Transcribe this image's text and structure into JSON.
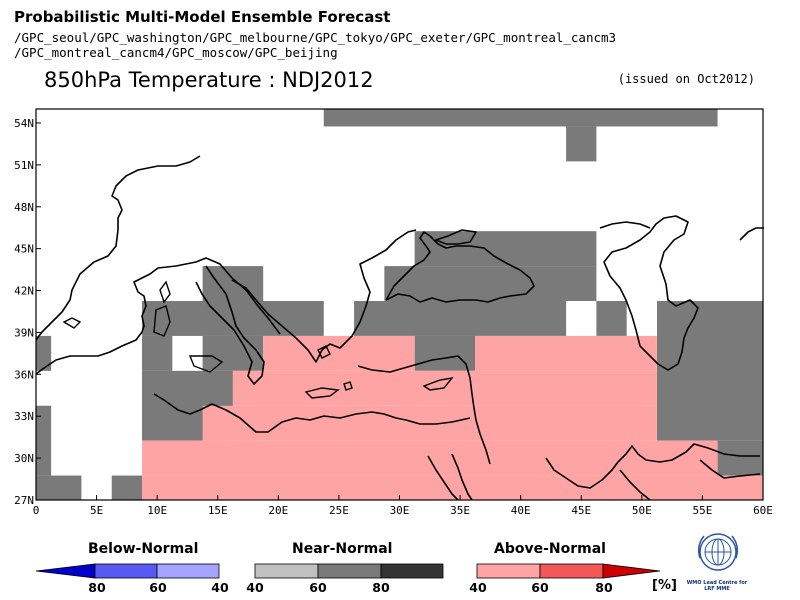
{
  "header": {
    "title": "Probabilistic Multi-Model Ensemble Forecast",
    "models_line1": "/GPC_seoul/GPC_washington/GPC_melbourne/GPC_tokyo/GPC_exeter/GPC_montreal_cancm3",
    "models_line2": "/GPC_montreal_cancm4/GPC_moscow/GPC_beijing",
    "main_title": "850hPa Temperature : NDJ2012",
    "issued": "(issued on Oct2012)"
  },
  "map": {
    "lon_range": [
      0,
      60
    ],
    "lat_range": [
      27,
      55
    ],
    "cell_size_deg": 2.5,
    "lon_ticks": [
      "0",
      "5E",
      "10E",
      "15E",
      "20E",
      "25E",
      "30E",
      "35E",
      "40E",
      "45E",
      "50E",
      "55E",
      "60E"
    ],
    "lat_ticks": [
      "27N",
      "30N",
      "33N",
      "36N",
      "39N",
      "42N",
      "45N",
      "48N",
      "51N",
      "54N"
    ],
    "colors": {
      "near_normal": "#7a7a7a",
      "above_normal": "#ffa4a4",
      "coastline": "#000000"
    },
    "shaded_boxes": [
      {
        "category": "near",
        "lon": [
          23.75,
          56.25
        ],
        "lat": [
          53.75,
          55
        ]
      },
      {
        "category": "near",
        "lon": [
          43.75,
          46.25
        ],
        "lat": [
          51.25,
          53.75
        ]
      },
      {
        "category": "near",
        "lon": [
          31.25,
          46.25
        ],
        "lat": [
          43.75,
          46.25
        ]
      },
      {
        "category": "near",
        "lon": [
          28.75,
          46.25
        ],
        "lat": [
          41.25,
          43.75
        ]
      },
      {
        "category": "near",
        "lon": [
          13.75,
          18.75
        ],
        "lat": [
          41.25,
          43.75
        ]
      },
      {
        "category": "near",
        "lon": [
          8.75,
          23.75
        ],
        "lat": [
          38.75,
          41.25
        ]
      },
      {
        "category": "near",
        "lon": [
          26.25,
          43.75
        ],
        "lat": [
          38.75,
          41.25
        ]
      },
      {
        "category": "near",
        "lon": [
          46.25,
          48.75
        ],
        "lat": [
          38.75,
          41.25
        ]
      },
      {
        "category": "near",
        "lon": [
          51.25,
          60
        ],
        "lat": [
          31.25,
          41.25
        ]
      },
      {
        "category": "near",
        "lon": [
          8.75,
          11.25
        ],
        "lat": [
          36.25,
          38.75
        ]
      },
      {
        "category": "near",
        "lon": [
          13.75,
          18.75
        ],
        "lat": [
          36.25,
          38.75
        ]
      },
      {
        "category": "near",
        "lon": [
          31.25,
          36.25
        ],
        "lat": [
          36.25,
          38.75
        ]
      },
      {
        "category": "near",
        "lon": [
          8.75,
          16.25
        ],
        "lat": [
          31.25,
          36.25
        ]
      },
      {
        "category": "near",
        "lon": [
          56.25,
          60
        ],
        "lat": [
          28.75,
          31.25
        ]
      },
      {
        "category": "near",
        "lon": [
          0,
          1.25
        ],
        "lat": [
          36.25,
          38.75
        ]
      },
      {
        "category": "near",
        "lon": [
          0,
          1.25
        ],
        "lat": [
          28.75,
          33.75
        ]
      },
      {
        "category": "near",
        "lon": [
          0,
          3.75
        ],
        "lat": [
          27,
          28.75
        ]
      },
      {
        "category": "near",
        "lon": [
          6.25,
          8.75
        ],
        "lat": [
          27,
          28.75
        ]
      },
      {
        "category": "above",
        "lon": [
          18.75,
          31.25
        ],
        "lat": [
          36.25,
          38.75
        ]
      },
      {
        "category": "above",
        "lon": [
          36.25,
          51.25
        ],
        "lat": [
          36.25,
          38.75
        ]
      },
      {
        "category": "above",
        "lon": [
          16.25,
          51.25
        ],
        "lat": [
          33.75,
          36.25
        ]
      },
      {
        "category": "above",
        "lon": [
          13.75,
          51.25
        ],
        "lat": [
          31.25,
          33.75
        ]
      },
      {
        "category": "above",
        "lon": [
          8.75,
          56.25
        ],
        "lat": [
          28.75,
          31.25
        ]
      },
      {
        "category": "above",
        "lon": [
          8.75,
          60
        ],
        "lat": [
          27,
          28.75
        ]
      }
    ]
  },
  "legend": {
    "below": {
      "label": "Below-Normal",
      "ticks": [
        "80",
        "60",
        "40"
      ],
      "colors": [
        "#0000cc",
        "#5858f2",
        "#a4a4ff"
      ]
    },
    "near": {
      "label": "Near-Normal",
      "ticks": [
        "40",
        "60",
        "80"
      ],
      "colors": [
        "#c0c0c0",
        "#7a7a7a",
        "#343434"
      ]
    },
    "above": {
      "label": "Above-Normal",
      "ticks": [
        "40",
        "60",
        "80"
      ],
      "colors": [
        "#ffa4a4",
        "#f25858",
        "#cc0000"
      ]
    },
    "unit": "[%]"
  },
  "logo": {
    "text_line1": "WMO Lead Centre for",
    "text_line2": "LRF MME"
  }
}
